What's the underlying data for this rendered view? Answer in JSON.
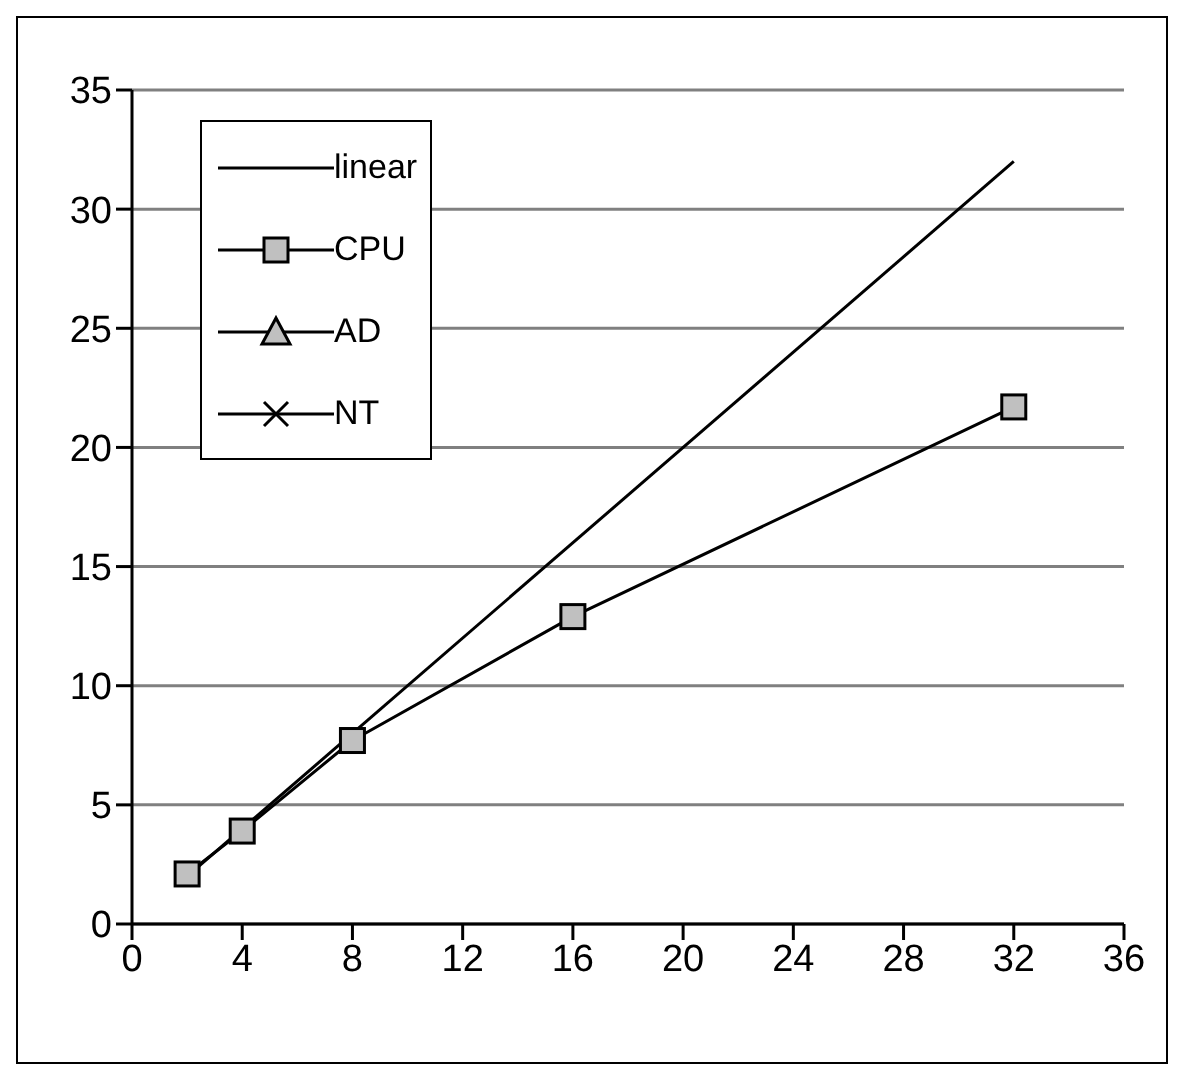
{
  "chart_data": {
    "type": "line",
    "x": [
      2,
      4,
      8,
      16,
      32
    ],
    "series": [
      {
        "name": "linear",
        "color": "#000000",
        "marker": "none",
        "x": [
          2,
          32
        ],
        "values": [
          2,
          32
        ]
      },
      {
        "name": "CPU",
        "color": "#c0c0c0",
        "marker": "square",
        "values": [
          2.1,
          3.9,
          7.7,
          12.9,
          21.7
        ]
      },
      {
        "name": "AD",
        "color": "#c0c0c0",
        "marker": "triangle",
        "values": [
          null,
          null,
          null,
          null,
          null
        ]
      },
      {
        "name": "NT",
        "color": "#000000",
        "marker": "cross",
        "values": [
          null,
          null,
          null,
          null,
          null
        ]
      }
    ],
    "xlim": [
      0,
      36
    ],
    "xticks": [
      0,
      4,
      8,
      12,
      16,
      20,
      24,
      28,
      32,
      36
    ],
    "ylim": [
      0,
      35
    ],
    "yticks": [
      0,
      5,
      10,
      15,
      20,
      25,
      30,
      35
    ],
    "grid": "y",
    "legend": "top left"
  }
}
